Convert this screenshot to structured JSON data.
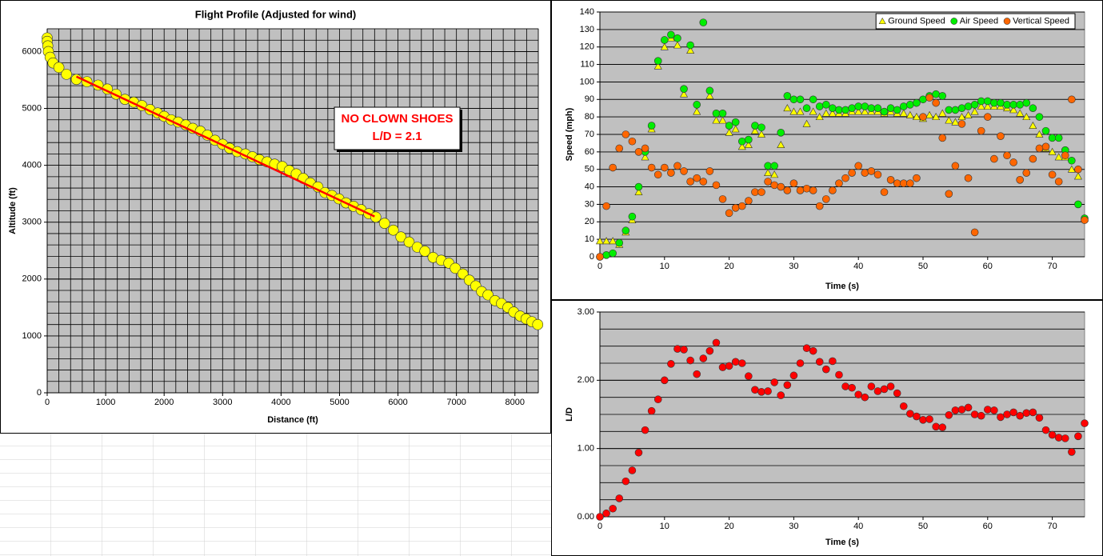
{
  "chart_data": [
    {
      "type": "scatter",
      "title": "Flight Profile (Adjusted for wind)",
      "x_label": "Distance (ft)",
      "y_label": "Altitude (ft)",
      "xlim": [
        0,
        8400
      ],
      "xticks": [
        0,
        1000,
        2000,
        3000,
        4000,
        5000,
        6000,
        7000,
        8000
      ],
      "ylim": [
        0,
        6400
      ],
      "yticks": [
        0,
        1000,
        2000,
        3000,
        4000,
        5000,
        6000
      ],
      "grid": "both",
      "annotations": [
        "NO CLOWN SHOES",
        "L/D = 2.1"
      ],
      "annotation_color": "#ff0000",
      "series": [
        {
          "color": "#ffff00",
          "marker": "circle",
          "x": [
            0,
            0,
            10,
            20,
            50,
            100,
            200,
            330,
            500,
            680,
            870,
            1030,
            1180,
            1330,
            1480,
            1620,
            1760,
            1890,
            2000,
            2120,
            2240,
            2370,
            2490,
            2620,
            2740,
            2870,
            3000,
            3120,
            3250,
            3390,
            3510,
            3630,
            3760,
            3890,
            4020,
            4140,
            4260,
            4380,
            4500,
            4630,
            4750,
            4870,
            4990,
            5110,
            5240,
            5370,
            5500,
            5620,
            5770,
            5920,
            6050,
            6190,
            6330,
            6460,
            6600,
            6740,
            6870,
            6980,
            7110,
            7220,
            7330,
            7430,
            7540,
            7660,
            7770,
            7880,
            7980,
            8090,
            8190,
            8290,
            8390
          ],
          "values": [
            6240,
            6180,
            6100,
            6000,
            5900,
            5800,
            5720,
            5600,
            5510,
            5470,
            5410,
            5340,
            5250,
            5160,
            5110,
            5050,
            4980,
            4920,
            4860,
            4800,
            4760,
            4710,
            4650,
            4600,
            4530,
            4440,
            4370,
            4300,
            4240,
            4200,
            4150,
            4100,
            4060,
            4020,
            3980,
            3910,
            3850,
            3770,
            3690,
            3620,
            3520,
            3470,
            3410,
            3340,
            3280,
            3220,
            3150,
            3090,
            2980,
            2860,
            2740,
            2650,
            2560,
            2490,
            2380,
            2330,
            2280,
            2190,
            2090,
            1980,
            1880,
            1780,
            1720,
            1620,
            1570,
            1500,
            1420,
            1350,
            1300,
            1250,
            1200
          ]
        },
        {
          "color": "#ff0000",
          "line": true,
          "x": [
            500,
            5600
          ],
          "values": [
            5560,
            3100
          ]
        }
      ]
    },
    {
      "type": "scatter",
      "x_label": "Time (s)",
      "y_label": "Speed (mph)",
      "xlim": [
        0,
        75
      ],
      "xticks": [
        0,
        10,
        20,
        30,
        40,
        50,
        60,
        70
      ],
      "ylim": [
        0,
        140
      ],
      "yticks": [
        0,
        10,
        20,
        30,
        40,
        50,
        60,
        70,
        80,
        90,
        100,
        110,
        120,
        130,
        140
      ],
      "grid": "y",
      "legend": "top-right",
      "x": [
        0,
        1,
        2,
        3,
        4,
        5,
        6,
        7,
        8,
        9,
        10,
        11,
        12,
        13,
        14,
        15,
        16,
        17,
        18,
        19,
        20,
        21,
        22,
        23,
        24,
        25,
        26,
        27,
        28,
        29,
        30,
        31,
        32,
        33,
        34,
        35,
        36,
        37,
        38,
        39,
        40,
        41,
        42,
        43,
        44,
        45,
        46,
        47,
        48,
        49,
        50,
        51,
        52,
        53,
        54,
        55,
        56,
        57,
        58,
        59,
        60,
        61,
        62,
        63,
        64,
        65,
        66,
        67,
        68,
        69,
        70,
        71,
        72,
        73,
        74,
        75
      ],
      "series": [
        {
          "name": "Ground Speed",
          "color": "#ffff00",
          "marker": "triangle",
          "values": [
            9,
            9,
            9,
            7,
            14,
            21,
            37,
            57,
            73,
            109,
            120,
            125,
            121,
            93,
            118,
            83,
            null,
            92,
            78,
            78,
            71,
            73,
            63,
            64,
            72,
            70,
            48,
            47,
            64,
            85,
            83,
            83,
            76,
            83,
            80,
            82,
            82,
            82,
            82,
            83,
            83,
            83,
            83,
            83,
            82,
            83,
            82,
            82,
            81,
            80,
            79,
            81,
            80,
            82,
            78,
            77,
            80,
            81,
            83,
            86,
            86,
            86,
            86,
            85,
            84,
            82,
            80,
            75,
            70,
            62,
            60,
            57,
            57,
            50,
            46,
            22
          ]
        },
        {
          "name": "Air Speed",
          "color": "#00ee00",
          "marker": "circle",
          "values": [
            0,
            1,
            2,
            8,
            15,
            23,
            40,
            60,
            75,
            112,
            124,
            127,
            125,
            96,
            121,
            87,
            134,
            95,
            82,
            82,
            75,
            77,
            66,
            67,
            75,
            74,
            52,
            52,
            71,
            92,
            90,
            90,
            85,
            90,
            86,
            87,
            85,
            84,
            84,
            85,
            86,
            86,
            85,
            85,
            83,
            85,
            84,
            86,
            87,
            88,
            90,
            92,
            93,
            92,
            84,
            84,
            85,
            86,
            87,
            89,
            89,
            88,
            88,
            87,
            87,
            87,
            88,
            85,
            80,
            72,
            68,
            68,
            61,
            55,
            30,
            22
          ]
        },
        {
          "name": "Vertical Speed",
          "color": "#ff6600",
          "marker": "circle",
          "values": [
            0,
            29,
            51,
            62,
            70,
            66,
            60,
            62,
            51,
            47,
            51,
            48,
            52,
            49,
            43,
            45,
            43,
            49,
            41,
            33,
            25,
            28,
            29,
            32,
            37,
            37,
            43,
            41,
            40,
            38,
            42,
            38,
            39,
            38,
            29,
            33,
            38,
            42,
            45,
            48,
            52,
            48,
            49,
            47,
            37,
            44,
            42,
            42,
            42,
            45,
            80,
            91,
            88,
            68,
            36,
            52,
            76,
            45,
            14,
            72,
            80,
            56,
            69,
            58,
            54,
            44,
            48,
            56,
            62,
            63,
            47,
            43,
            58,
            90,
            50,
            21
          ]
        }
      ]
    },
    {
      "type": "scatter",
      "x_label": "Time (s)",
      "y_label": "L/D",
      "xlim": [
        0,
        75
      ],
      "xticks": [
        0,
        10,
        20,
        30,
        40,
        50,
        60,
        70
      ],
      "ylim": [
        0,
        3
      ],
      "yticks": [
        {
          "value": 0,
          "label": "0.00"
        },
        {
          "value": 1,
          "label": "1.00"
        },
        {
          "value": 2,
          "label": "2.00"
        },
        {
          "value": 3,
          "label": "3.00"
        }
      ],
      "grid": "y",
      "x": [
        0,
        1,
        2,
        3,
        4,
        5,
        6,
        7,
        8,
        9,
        10,
        11,
        12,
        13,
        14,
        15,
        16,
        17,
        18,
        19,
        20,
        21,
        22,
        23,
        24,
        25,
        26,
        27,
        28,
        29,
        30,
        31,
        32,
        33,
        34,
        35,
        36,
        37,
        38,
        39,
        40,
        41,
        42,
        43,
        44,
        45,
        46,
        47,
        48,
        49,
        50,
        51,
        52,
        53,
        54,
        55,
        56,
        57,
        58,
        59,
        60,
        61,
        62,
        63,
        64,
        65,
        66,
        67,
        68,
        69,
        70,
        71,
        72,
        73,
        74,
        75
      ],
      "series": [
        {
          "color": "#ff0000",
          "marker": "circle",
          "values": [
            0,
            0.05,
            0.12,
            0.27,
            0.52,
            0.68,
            0.94,
            1.27,
            1.55,
            1.72,
            2.0,
            2.24,
            2.46,
            2.45,
            2.29,
            2.09,
            2.32,
            2.43,
            2.55,
            2.19,
            2.21,
            2.27,
            2.25,
            2.06,
            1.86,
            1.83,
            1.84,
            1.97,
            1.78,
            1.93,
            2.07,
            2.25,
            2.47,
            2.43,
            2.27,
            2.16,
            2.28,
            2.08,
            1.91,
            1.89,
            1.79,
            1.75,
            1.91,
            1.84,
            1.87,
            1.91,
            1.81,
            1.62,
            1.51,
            1.47,
            1.42,
            1.43,
            1.32,
            1.31,
            1.49,
            1.56,
            1.57,
            1.6,
            1.5,
            1.48,
            1.57,
            1.56,
            1.46,
            1.5,
            1.53,
            1.48,
            1.52,
            1.53,
            1.45,
            1.27,
            1.2,
            1.16,
            1.15,
            0.95,
            1.18,
            1.37
          ]
        }
      ]
    }
  ]
}
